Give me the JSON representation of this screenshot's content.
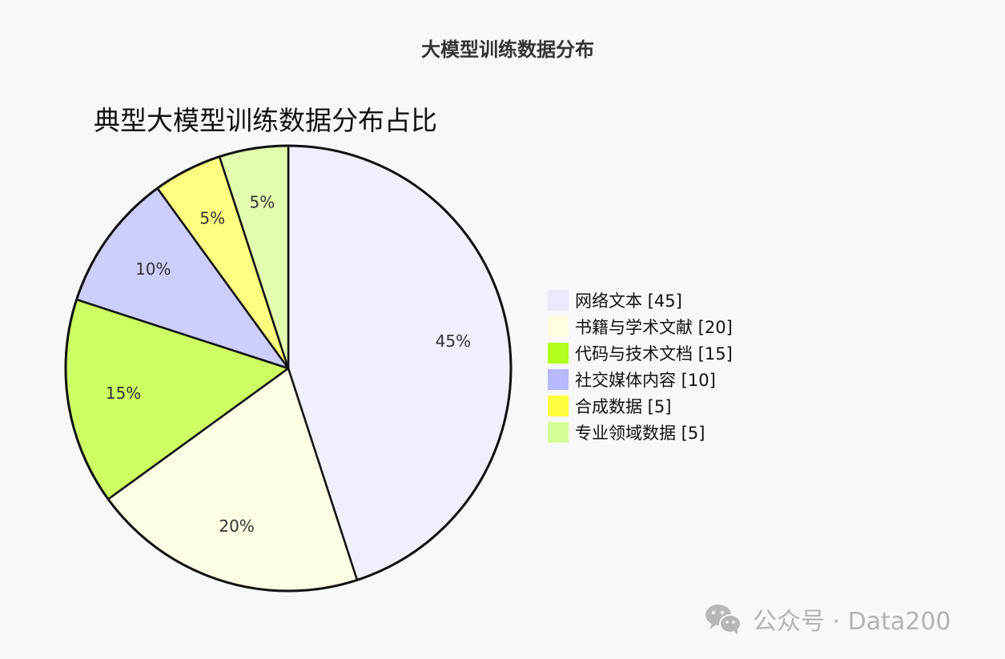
{
  "page": {
    "title": "大模型训练数据分布"
  },
  "watermark": {
    "text": "公众号 · Data200",
    "icon": "wechat-icon"
  },
  "chart_data": {
    "type": "pie",
    "title": "典型大模型训练数据分布占比",
    "legend_position": "right",
    "slices": [
      {
        "name": "网络文本",
        "value": 45,
        "label": "45%",
        "color": "#efeffe"
      },
      {
        "name": "书籍与学术文献",
        "value": 20,
        "label": "20%",
        "color": "#fefee4"
      },
      {
        "name": "代码与技术文档",
        "value": 15,
        "label": "15%",
        "color": "#cdfe64"
      },
      {
        "name": "社交媒体内容",
        "value": 10,
        "label": "10%",
        "color": "#cdcdfe"
      },
      {
        "name": "合成数据",
        "value": 5,
        "label": "5%",
        "color": "#fefe80"
      },
      {
        "name": "专业领域数据",
        "value": 5,
        "label": "5%",
        "color": "#e2fdb0"
      }
    ],
    "legend": [
      {
        "text": "网络文本 [45]",
        "color": "#eaeaff"
      },
      {
        "text": "书籍与学术文献 [20]",
        "color": "#fefedf"
      },
      {
        "text": "代码与技术文档 [15]",
        "color": "#b1fe1d"
      },
      {
        "text": "社交媒体内容 [10]",
        "color": "#b9b9fe"
      },
      {
        "text": "合成数据 [5]",
        "color": "#fefe3c"
      },
      {
        "text": "专业领域数据 [5]",
        "color": "#d6fe98"
      }
    ]
  }
}
